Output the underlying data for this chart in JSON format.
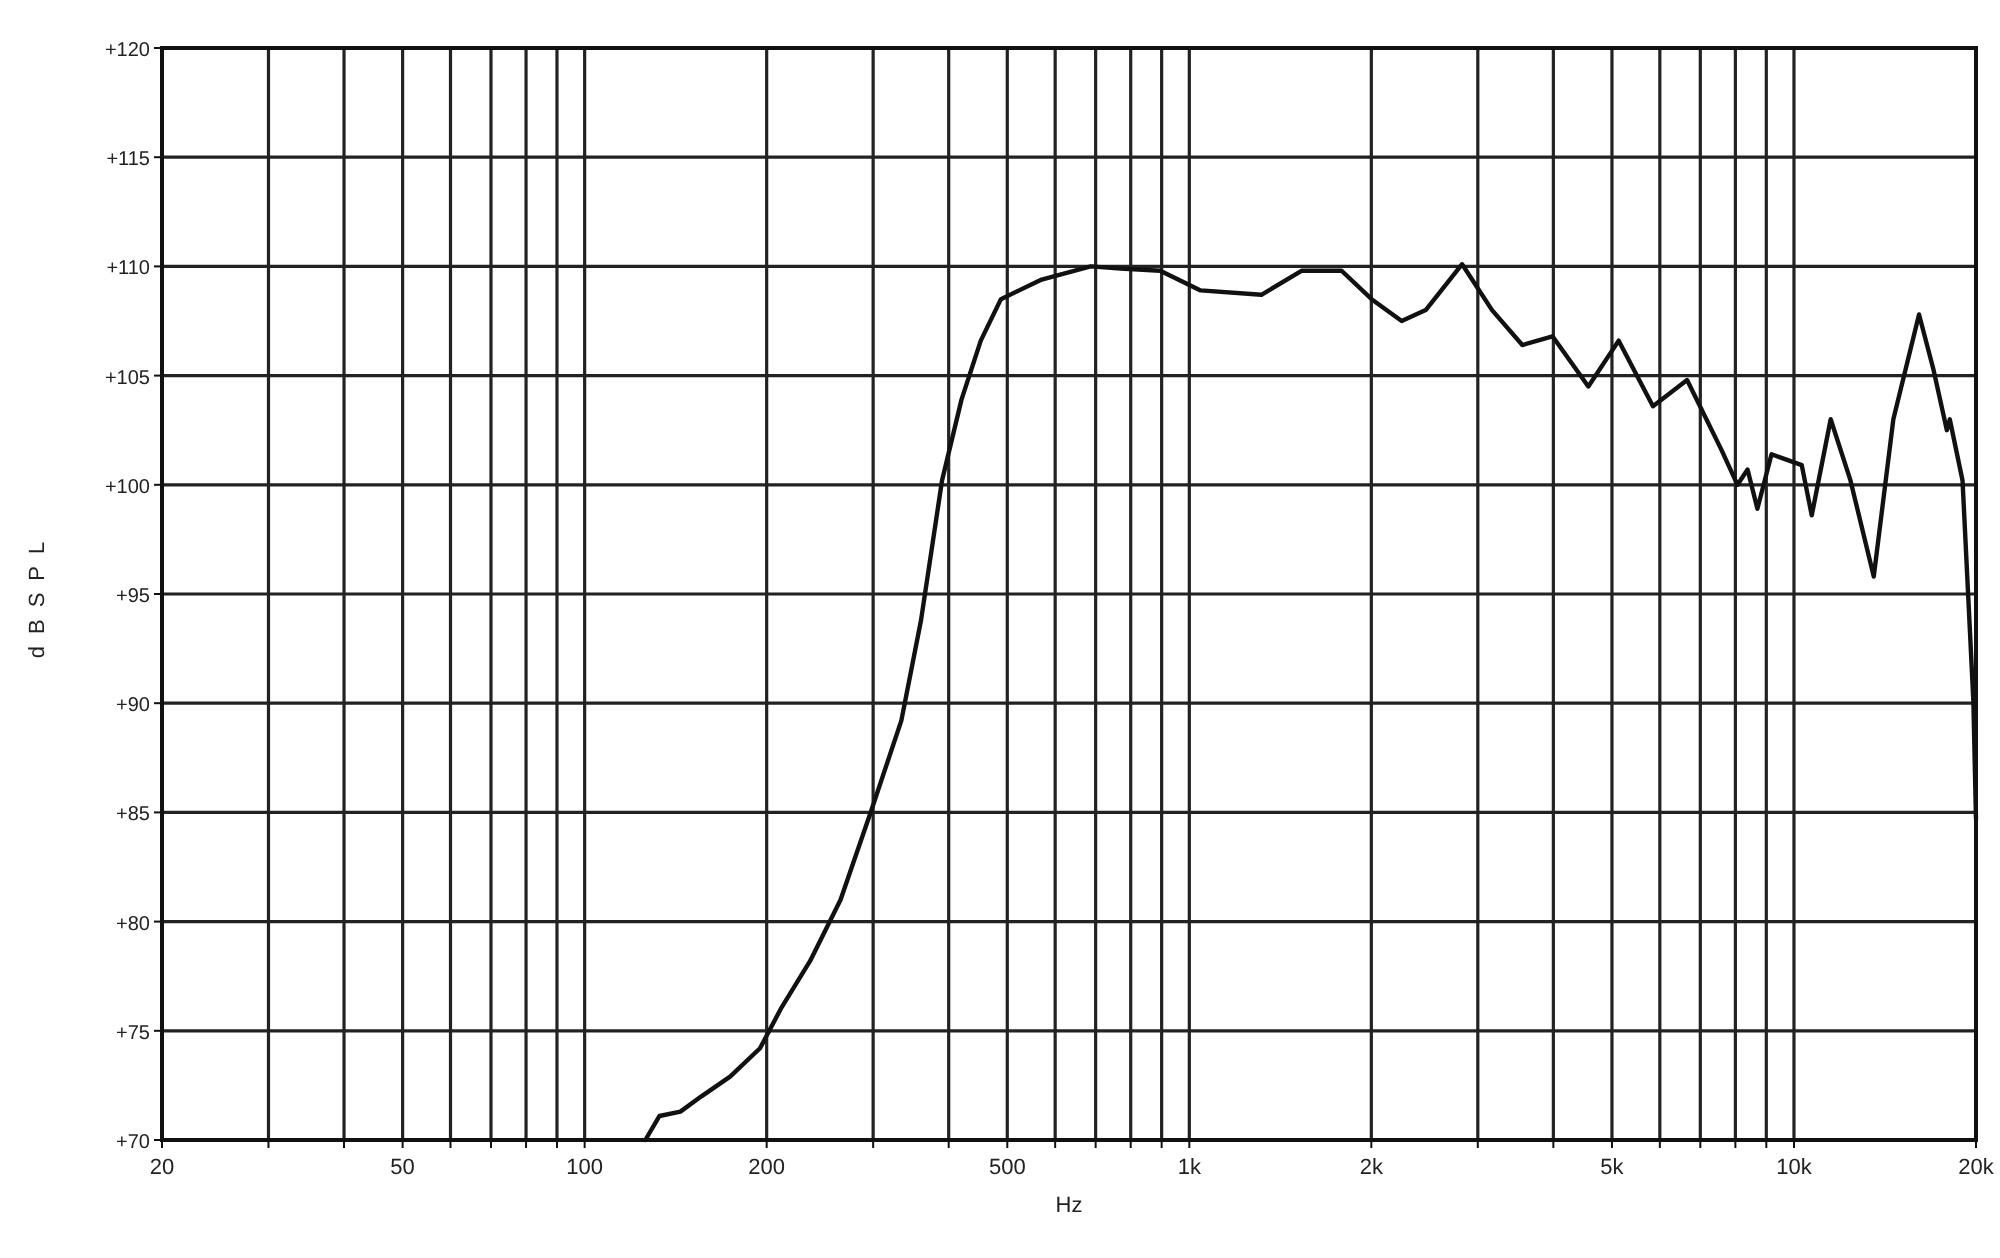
{
  "chart_data": {
    "type": "line",
    "xlabel": "Hz",
    "ylabel": "dBSPL",
    "log": "x",
    "grid": true,
    "marker": "none",
    "line_style": "solid",
    "xlim": [
      20,
      20000
    ],
    "ylim": [
      70,
      120
    ],
    "xticks": [
      20,
      {
        "value": 30,
        "label": null
      },
      {
        "value": 40,
        "label": null
      },
      50,
      {
        "value": 60,
        "label": null
      },
      {
        "value": 70,
        "label": null
      },
      {
        "value": 80,
        "label": null
      },
      {
        "value": 90,
        "label": null
      },
      100,
      200,
      {
        "value": 300,
        "label": null
      },
      {
        "value": 400,
        "label": null
      },
      500,
      {
        "value": 600,
        "label": null
      },
      {
        "value": 700,
        "label": null
      },
      {
        "value": 800,
        "label": null
      },
      {
        "value": 900,
        "label": null
      },
      {
        "value": 1000,
        "label": "1k"
      },
      {
        "value": 2000,
        "label": "2k"
      },
      {
        "value": 3000,
        "label": null
      },
      {
        "value": 4000,
        "label": null
      },
      {
        "value": 5000,
        "label": "5k"
      },
      {
        "value": 6000,
        "label": null
      },
      {
        "value": 7000,
        "label": null
      },
      {
        "value": 8000,
        "label": null
      },
      {
        "value": 9000,
        "label": null
      },
      {
        "value": 10000,
        "label": "10k"
      },
      {
        "value": 20000,
        "label": "20k"
      }
    ],
    "yticks": [
      {
        "value": 70,
        "label": "+70"
      },
      {
        "value": 75,
        "label": "+75"
      },
      {
        "value": 80,
        "label": "+80"
      },
      {
        "value": 85,
        "label": "+85"
      },
      {
        "value": 90,
        "label": "+90"
      },
      {
        "value": 95,
        "label": "+95"
      },
      {
        "value": 100,
        "label": "+100"
      },
      {
        "value": 105,
        "label": "+105"
      },
      {
        "value": 110,
        "label": "+110"
      },
      {
        "value": 115,
        "label": "+115"
      },
      {
        "value": 120,
        "label": "+120"
      }
    ],
    "series": [
      {
        "color": "#111111",
        "x": [
          126,
          133,
          144,
          156,
          174,
          195,
          211,
          236,
          265,
          298,
          334,
          360,
          390,
          420,
          452,
          488,
          570,
          687,
          770,
          895,
          1044,
          1316,
          1533,
          1786,
          2002,
          2245,
          2460,
          2826,
          3167,
          3554,
          3987,
          4570,
          5130,
          5845,
          6656,
          7587,
          8065,
          8380,
          8700,
          9180,
          10300,
          10700,
          11500,
          12400,
          13550,
          14600,
          16100,
          17000,
          17900,
          18100,
          19000,
          19800,
          20000
        ],
        "values": [
          70,
          71.1,
          71.3,
          72,
          72.9,
          74.2,
          76,
          78.2,
          81,
          85.1,
          89.2,
          93.8,
          100.2,
          103.9,
          106.6,
          108.5,
          109.4,
          110,
          109.9,
          109.8,
          108.9,
          108.7,
          109.8,
          109.8,
          108.5,
          107.5,
          108,
          110.1,
          108,
          106.4,
          106.8,
          104.5,
          106.6,
          103.6,
          104.8,
          101.6,
          100,
          100.7,
          98.9,
          101.4,
          100.9,
          98.6,
          103,
          100.2,
          95.8,
          103,
          107.8,
          105.3,
          102.5,
          103,
          100.2,
          90.1,
          84.7
        ]
      }
    ]
  }
}
